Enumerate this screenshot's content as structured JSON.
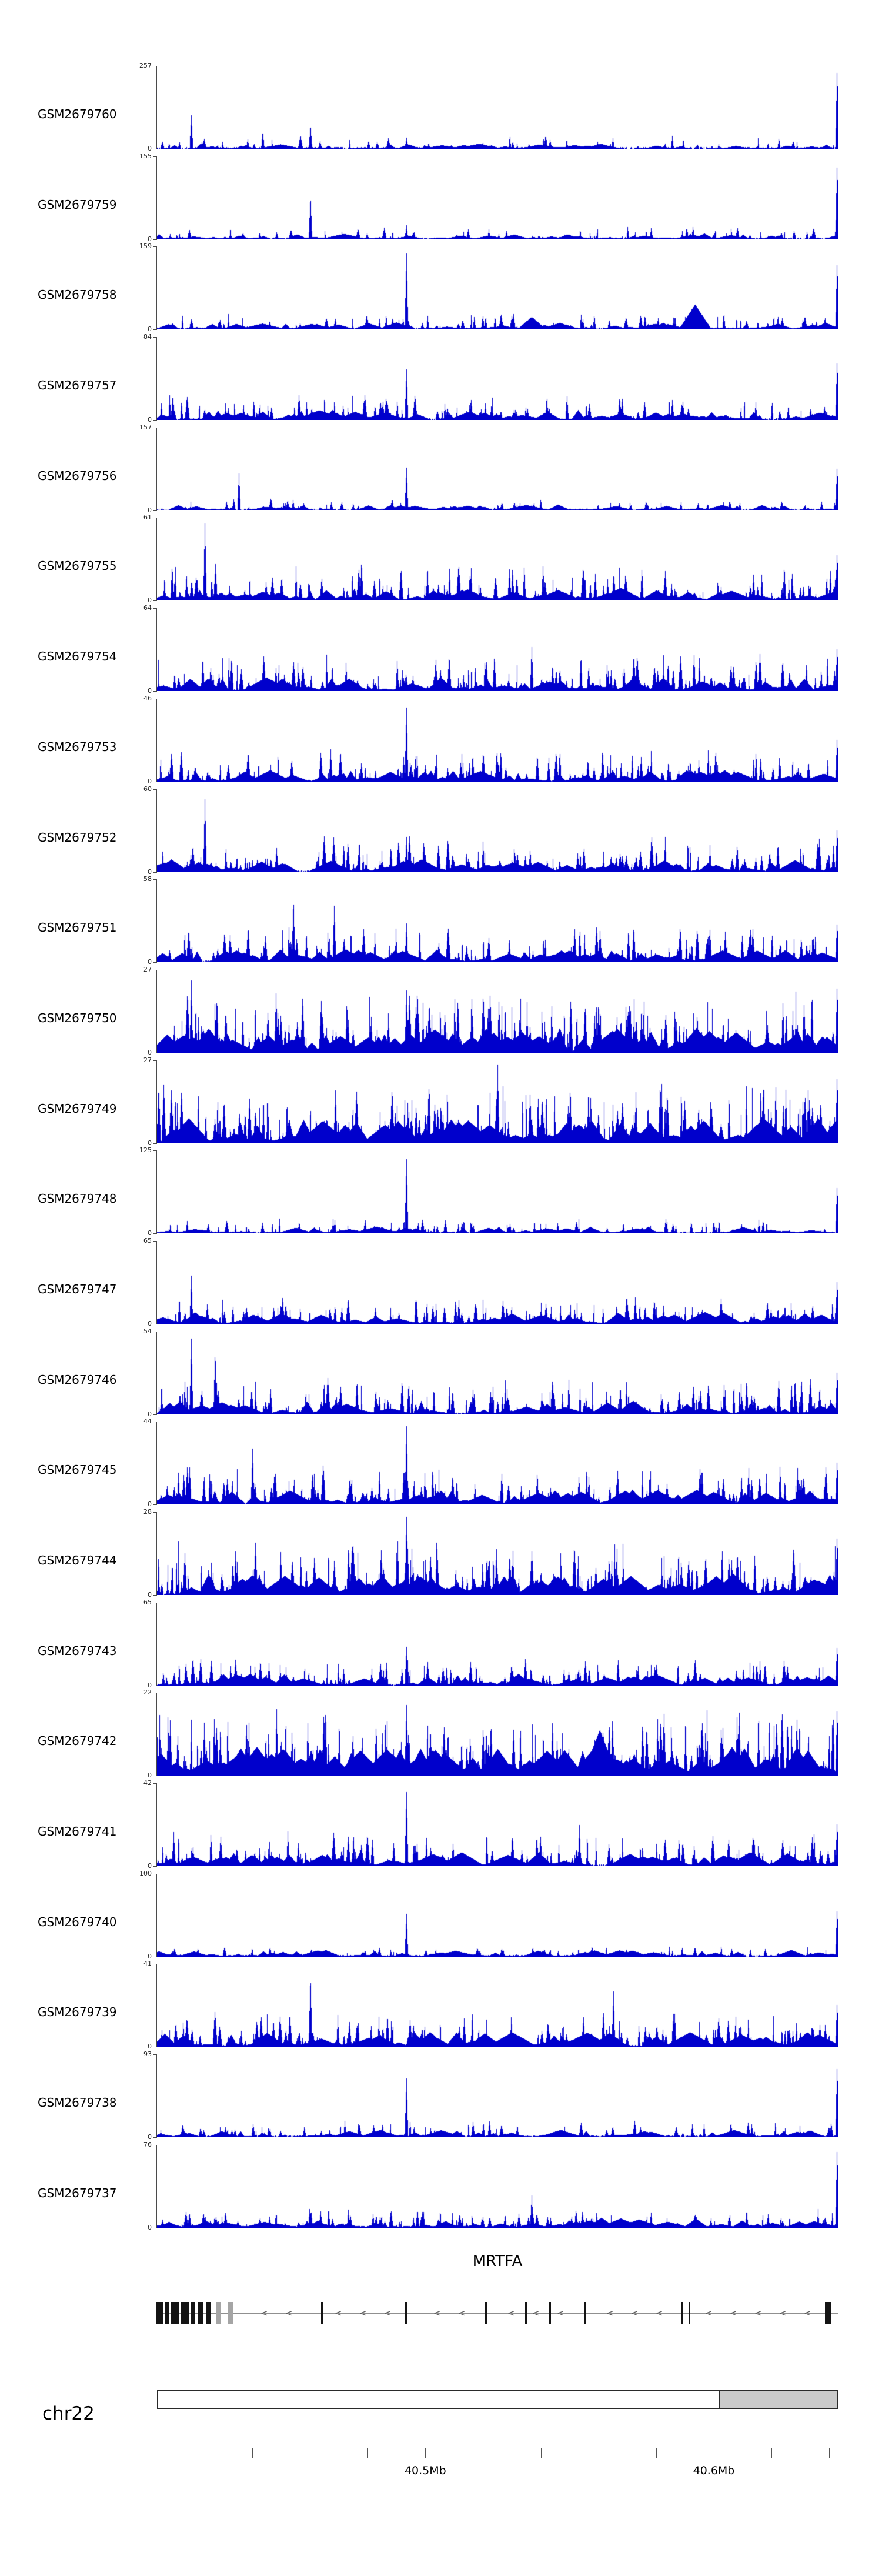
{
  "page": {
    "background": "#ffffff"
  },
  "chart_data": {
    "type": "area",
    "description": "Genome browser view: 24 GEO sample coverage tracks (blue histogram signal) over the MRTFA locus on chr22, with gene model, chromosome ideogram and genomic axis.",
    "signal_color": "#0000cc",
    "y_min_label": "0",
    "tracks": [
      {
        "label": "GSM2679760",
        "ymax": 257,
        "seed": 11,
        "density": 0.28,
        "amp": 0.5,
        "spike": 0.18,
        "floor": 0.55,
        "peaks": [
          {
            "pos": 0.05,
            "h": 0.42
          },
          {
            "pos": 0.155,
            "h": 0.22
          },
          {
            "pos": 0.225,
            "h": 0.3
          },
          {
            "pos": 0.366,
            "h": 0.14
          },
          {
            "pos": 0.9985,
            "h": 1.0
          }
        ]
      },
      {
        "label": "GSM2679759",
        "ymax": 155,
        "seed": 22,
        "density": 0.3,
        "amp": 0.6,
        "spike": 0.16,
        "floor": 0.6,
        "peaks": [
          {
            "pos": 0.225,
            "h": 0.55
          },
          {
            "pos": 0.366,
            "h": 0.18
          },
          {
            "pos": 0.9985,
            "h": 0.95
          }
        ]
      },
      {
        "label": "GSM2679758",
        "ymax": 159,
        "seed": 33,
        "density": 0.32,
        "amp": 0.7,
        "spike": 0.2,
        "floor": 0.65,
        "peaks": [
          {
            "pos": 0.366,
            "h": 0.97
          },
          {
            "pos": 0.55,
            "h": 0.15,
            "w": 25
          },
          {
            "pos": 0.79,
            "h": 0.3,
            "w": 28
          },
          {
            "pos": 0.9985,
            "h": 0.85
          }
        ]
      },
      {
        "label": "GSM2679757",
        "ymax": 84,
        "seed": 44,
        "density": 0.45,
        "amp": 1.0,
        "spike": 0.32,
        "floor": 0.75,
        "peaks": [
          {
            "pos": 0.366,
            "h": 0.65
          },
          {
            "pos": 0.9985,
            "h": 0.75
          }
        ]
      },
      {
        "label": "GSM2679756",
        "ymax": 157,
        "seed": 55,
        "density": 0.3,
        "amp": 0.6,
        "spike": 0.15,
        "floor": 0.6,
        "peaks": [
          {
            "pos": 0.12,
            "h": 0.45
          },
          {
            "pos": 0.366,
            "h": 0.55
          },
          {
            "pos": 0.9985,
            "h": 0.55
          }
        ]
      },
      {
        "label": "GSM2679755",
        "ymax": 61,
        "seed": 66,
        "density": 0.55,
        "amp": 1.3,
        "spike": 0.45,
        "floor": 0.85,
        "peaks": [
          {
            "pos": 0.07,
            "h": 0.95
          },
          {
            "pos": 0.3,
            "h": 0.5
          },
          {
            "pos": 0.9985,
            "h": 0.6
          }
        ]
      },
      {
        "label": "GSM2679754",
        "ymax": 64,
        "seed": 77,
        "density": 0.6,
        "amp": 1.4,
        "spike": 0.45,
        "floor": 0.85,
        "peaks": [
          {
            "pos": 0.55,
            "h": 0.55
          },
          {
            "pos": 0.9985,
            "h": 0.55
          }
        ]
      },
      {
        "label": "GSM2679753",
        "ymax": 46,
        "seed": 88,
        "density": 0.5,
        "amp": 1.2,
        "spike": 0.4,
        "floor": 0.8,
        "peaks": [
          {
            "pos": 0.366,
            "h": 0.95
          },
          {
            "pos": 0.9985,
            "h": 0.55
          }
        ]
      },
      {
        "label": "GSM2679752",
        "ymax": 60,
        "seed": 99,
        "density": 0.55,
        "amp": 1.3,
        "spike": 0.45,
        "floor": 0.85,
        "peaks": [
          {
            "pos": 0.07,
            "h": 0.9
          },
          {
            "pos": 0.366,
            "h": 0.45
          },
          {
            "pos": 0.9985,
            "h": 0.55
          }
        ]
      },
      {
        "label": "GSM2679751",
        "ymax": 58,
        "seed": 110,
        "density": 0.5,
        "amp": 1.3,
        "spike": 0.45,
        "floor": 0.8,
        "peaks": [
          {
            "pos": 0.2,
            "h": 0.8
          },
          {
            "pos": 0.26,
            "h": 0.7
          },
          {
            "pos": 0.366,
            "h": 0.5
          },
          {
            "pos": 0.9985,
            "h": 0.5
          }
        ]
      },
      {
        "label": "GSM2679750",
        "ymax": 27,
        "seed": 121,
        "density": 0.75,
        "amp": 2.6,
        "spike": 0.75,
        "floor": 0.95,
        "peaks": [
          {
            "pos": 0.05,
            "h": 0.9
          },
          {
            "pos": 0.366,
            "h": 0.8
          },
          {
            "pos": 0.9985,
            "h": 0.85
          }
        ]
      },
      {
        "label": "GSM2679749",
        "ymax": 27,
        "seed": 132,
        "density": 0.75,
        "amp": 2.6,
        "spike": 0.75,
        "floor": 0.95,
        "peaks": [
          {
            "pos": 0.5,
            "h": 0.95
          },
          {
            "pos": 0.9985,
            "h": 0.85
          }
        ]
      },
      {
        "label": "GSM2679748",
        "ymax": 125,
        "seed": 143,
        "density": 0.35,
        "amp": 0.7,
        "spike": 0.18,
        "floor": 0.65,
        "peaks": [
          {
            "pos": 0.366,
            "h": 0.95
          },
          {
            "pos": 0.9985,
            "h": 0.6
          }
        ]
      },
      {
        "label": "GSM2679747",
        "ymax": 65,
        "seed": 154,
        "density": 0.5,
        "amp": 1.2,
        "spike": 0.35,
        "floor": 0.8,
        "peaks": [
          {
            "pos": 0.05,
            "h": 0.6
          },
          {
            "pos": 0.9985,
            "h": 0.55
          }
        ]
      },
      {
        "label": "GSM2679746",
        "ymax": 54,
        "seed": 165,
        "density": 0.58,
        "amp": 1.4,
        "spike": 0.45,
        "floor": 0.85,
        "peaks": [
          {
            "pos": 0.05,
            "h": 0.95
          },
          {
            "pos": 0.085,
            "h": 0.8
          },
          {
            "pos": 0.9985,
            "h": 0.55
          }
        ]
      },
      {
        "label": "GSM2679745",
        "ymax": 44,
        "seed": 176,
        "density": 0.6,
        "amp": 1.5,
        "spike": 0.5,
        "floor": 0.85,
        "peaks": [
          {
            "pos": 0.14,
            "h": 0.7
          },
          {
            "pos": 0.366,
            "h": 1.0
          },
          {
            "pos": 0.9985,
            "h": 0.55
          }
        ]
      },
      {
        "label": "GSM2679744",
        "ymax": 28,
        "seed": 187,
        "density": 0.7,
        "amp": 2.2,
        "spike": 0.7,
        "floor": 0.9,
        "peaks": [
          {
            "pos": 0.366,
            "h": 1.0
          },
          {
            "pos": 0.9985,
            "h": 0.75
          }
        ]
      },
      {
        "label": "GSM2679743",
        "ymax": 65,
        "seed": 198,
        "density": 0.5,
        "amp": 1.2,
        "spike": 0.35,
        "floor": 0.8,
        "peaks": [
          {
            "pos": 0.366,
            "h": 0.5
          },
          {
            "pos": 0.9985,
            "h": 0.5
          }
        ]
      },
      {
        "label": "GSM2679742",
        "ymax": 22,
        "seed": 209,
        "density": 0.8,
        "amp": 2.9,
        "spike": 0.85,
        "floor": 0.95,
        "peaks": [
          {
            "pos": 0.366,
            "h": 0.9
          },
          {
            "pos": 0.65,
            "h": 0.55,
            "w": 30
          },
          {
            "pos": 0.9985,
            "h": 0.85
          }
        ]
      },
      {
        "label": "GSM2679741",
        "ymax": 42,
        "seed": 220,
        "density": 0.55,
        "amp": 1.4,
        "spike": 0.45,
        "floor": 0.85,
        "peaks": [
          {
            "pos": 0.366,
            "h": 0.95
          },
          {
            "pos": 0.62,
            "h": 0.5
          },
          {
            "pos": 0.9985,
            "h": 0.55
          }
        ]
      },
      {
        "label": "GSM2679740",
        "ymax": 100,
        "seed": 231,
        "density": 0.35,
        "amp": 0.7,
        "spike": 0.14,
        "floor": 0.7,
        "peaks": [
          {
            "pos": 0.366,
            "h": 0.55
          },
          {
            "pos": 0.9985,
            "h": 0.6
          }
        ]
      },
      {
        "label": "GSM2679739",
        "ymax": 41,
        "seed": 242,
        "density": 0.6,
        "amp": 1.5,
        "spike": 0.45,
        "floor": 0.85,
        "peaks": [
          {
            "pos": 0.225,
            "h": 0.9
          },
          {
            "pos": 0.67,
            "h": 0.7
          },
          {
            "pos": 0.9985,
            "h": 0.55
          }
        ]
      },
      {
        "label": "GSM2679738",
        "ymax": 93,
        "seed": 253,
        "density": 0.4,
        "amp": 0.8,
        "spike": 0.2,
        "floor": 0.7,
        "peaks": [
          {
            "pos": 0.366,
            "h": 0.75
          },
          {
            "pos": 0.9985,
            "h": 0.9
          }
        ]
      },
      {
        "label": "GSM2679737",
        "ymax": 76,
        "seed": 264,
        "density": 0.5,
        "amp": 1.0,
        "spike": 0.25,
        "floor": 0.85,
        "peaks": [
          {
            "pos": 0.55,
            "h": 0.4
          },
          {
            "pos": 0.9985,
            "h": 1.0
          }
        ]
      }
    ],
    "gene_track": {
      "name": "MRTFA",
      "strand": "-",
      "line_color": "#909090",
      "exon_color": "#141414",
      "utr_color": "#a5a5a5",
      "arrow_glyph": "<",
      "exons": [
        {
          "pos": 0.004,
          "w": 11
        },
        {
          "pos": 0.0145,
          "w": 7
        },
        {
          "pos": 0.0229,
          "w": 7
        },
        {
          "pos": 0.0301,
          "w": 7
        },
        {
          "pos": 0.0373,
          "w": 7
        },
        {
          "pos": 0.0446,
          "w": 7
        },
        {
          "pos": 0.053,
          "w": 7
        },
        {
          "pos": 0.0639,
          "w": 8
        },
        {
          "pos": 0.0759,
          "w": 8
        },
        {
          "pos": 0.0904,
          "w": 9,
          "utr": true
        },
        {
          "pos": 0.1072,
          "w": 9,
          "utr": true
        },
        {
          "pos": 0.242,
          "w": 3
        },
        {
          "pos": 0.366,
          "w": 3
        },
        {
          "pos": 0.483,
          "w": 3
        },
        {
          "pos": 0.542,
          "w": 3
        },
        {
          "pos": 0.577,
          "w": 3
        },
        {
          "pos": 0.628,
          "w": 3
        },
        {
          "pos": 0.772,
          "w": 3
        },
        {
          "pos": 0.782,
          "w": 3
        },
        {
          "pos": 0.985,
          "w": 10
        }
      ]
    },
    "ideogram": {
      "chromosome_label": "chr22",
      "band_start": 0.826,
      "band_end": 1.0,
      "band_color": "#cacaca"
    },
    "axis": {
      "start_mb": 40.407,
      "end_mb": 40.643,
      "first_tick_mb": 40.42,
      "tick_step_mb": 0.02,
      "labels": [
        {
          "value": 40.5,
          "text": "40.5Mb"
        },
        {
          "value": 40.6,
          "text": "40.6Mb"
        }
      ]
    }
  }
}
